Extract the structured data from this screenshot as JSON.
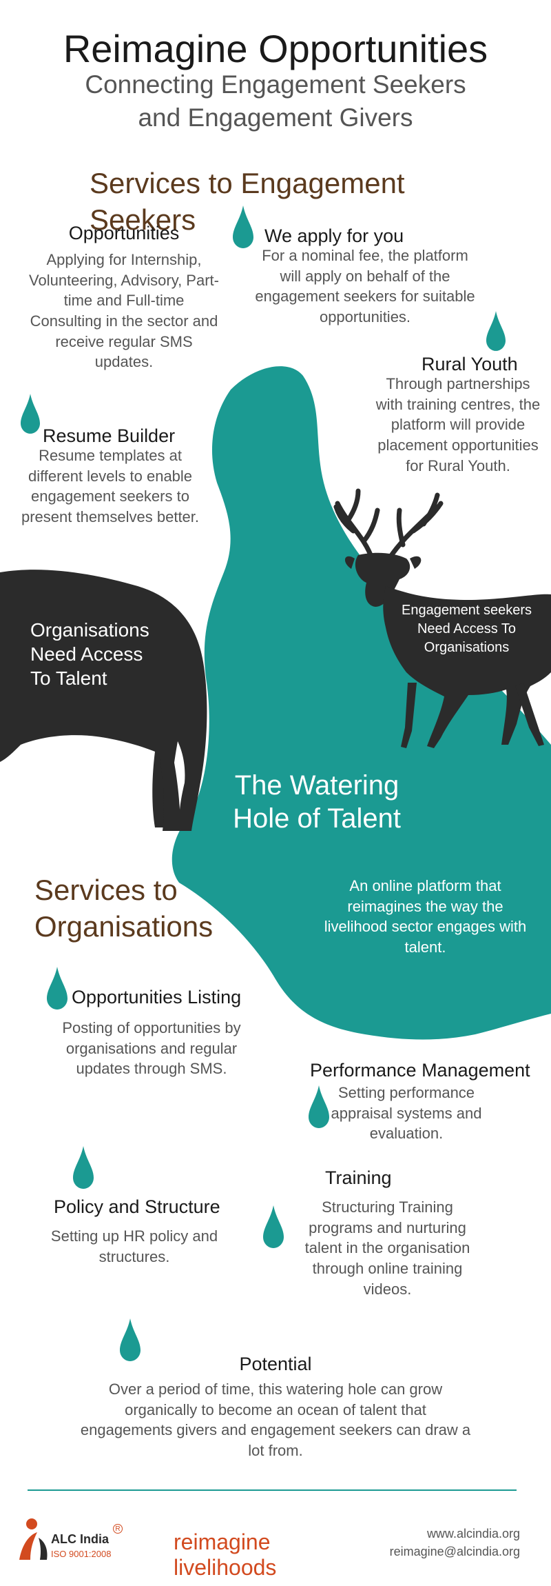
{
  "header": {
    "title": "Reimagine Opportunities",
    "subtitle_line1": "Connecting Engagement Seekers",
    "subtitle_line2": "and Engagement Givers"
  },
  "seekers": {
    "heading": "Services to Engagement Seekers",
    "items": [
      {
        "title": "Opportunities",
        "body": "Applying for Internship, Volunteering, Advisory, Part-time and Full-time Consulting in the sector and receive regular SMS updates."
      },
      {
        "title": "We apply for you",
        "body": "For a nominal fee, the platform will apply on behalf of the engagement seekers for suitable opportunities."
      },
      {
        "title": "Rural Youth",
        "body": "Through partnerships with training centres, the platform will provide placement opportunities for Rural Youth."
      },
      {
        "title": "Resume Builder",
        "body": "Resume templates at different levels to enable engagement seekers to present themselves better."
      }
    ]
  },
  "illustration": {
    "elephant_text": "Organisations Need Access To Talent",
    "deer_text": "Engagement seekers Need Access To Organisations",
    "pool_title": "The Watering Hole of Talent",
    "pool_body": "An online platform that reimagines the way the livelihood sector engages with talent."
  },
  "organisations": {
    "heading_line1": "Services to",
    "heading_line2": "Organisations",
    "items": [
      {
        "title": "Opportunities Listing",
        "body": "Posting of opportunities by organisations and regular updates through SMS."
      },
      {
        "title": "Performance Management",
        "body": "Setting performance appraisal systems and evaluation."
      },
      {
        "title": "Policy and Structure",
        "body": "Setting up HR policy and structures."
      },
      {
        "title": "Training",
        "body": "Structuring Training programs and nurturing talent in the organisation through online training videos."
      },
      {
        "title": "Potential",
        "body": "Over a period of time, this watering hole can grow organically to become an ocean of talent that engagements givers and engagement seekers can draw a lot from."
      }
    ]
  },
  "footer": {
    "logo_name": "ALC India",
    "logo_reg": "R",
    "logo_iso": "ISO 9001:2008",
    "tagline": "reimagine livelihoods",
    "website": "www.alcindia.org",
    "email": "reimagine@alcindia.org"
  },
  "colors": {
    "teal": "#1b9a92",
    "dark": "#2b2b2b",
    "brown": "#5b3a1e",
    "orange": "#d24a1f"
  },
  "icons": [
    "water-drop-icon",
    "elephant-icon",
    "deer-icon",
    "alc-logo-icon"
  ]
}
